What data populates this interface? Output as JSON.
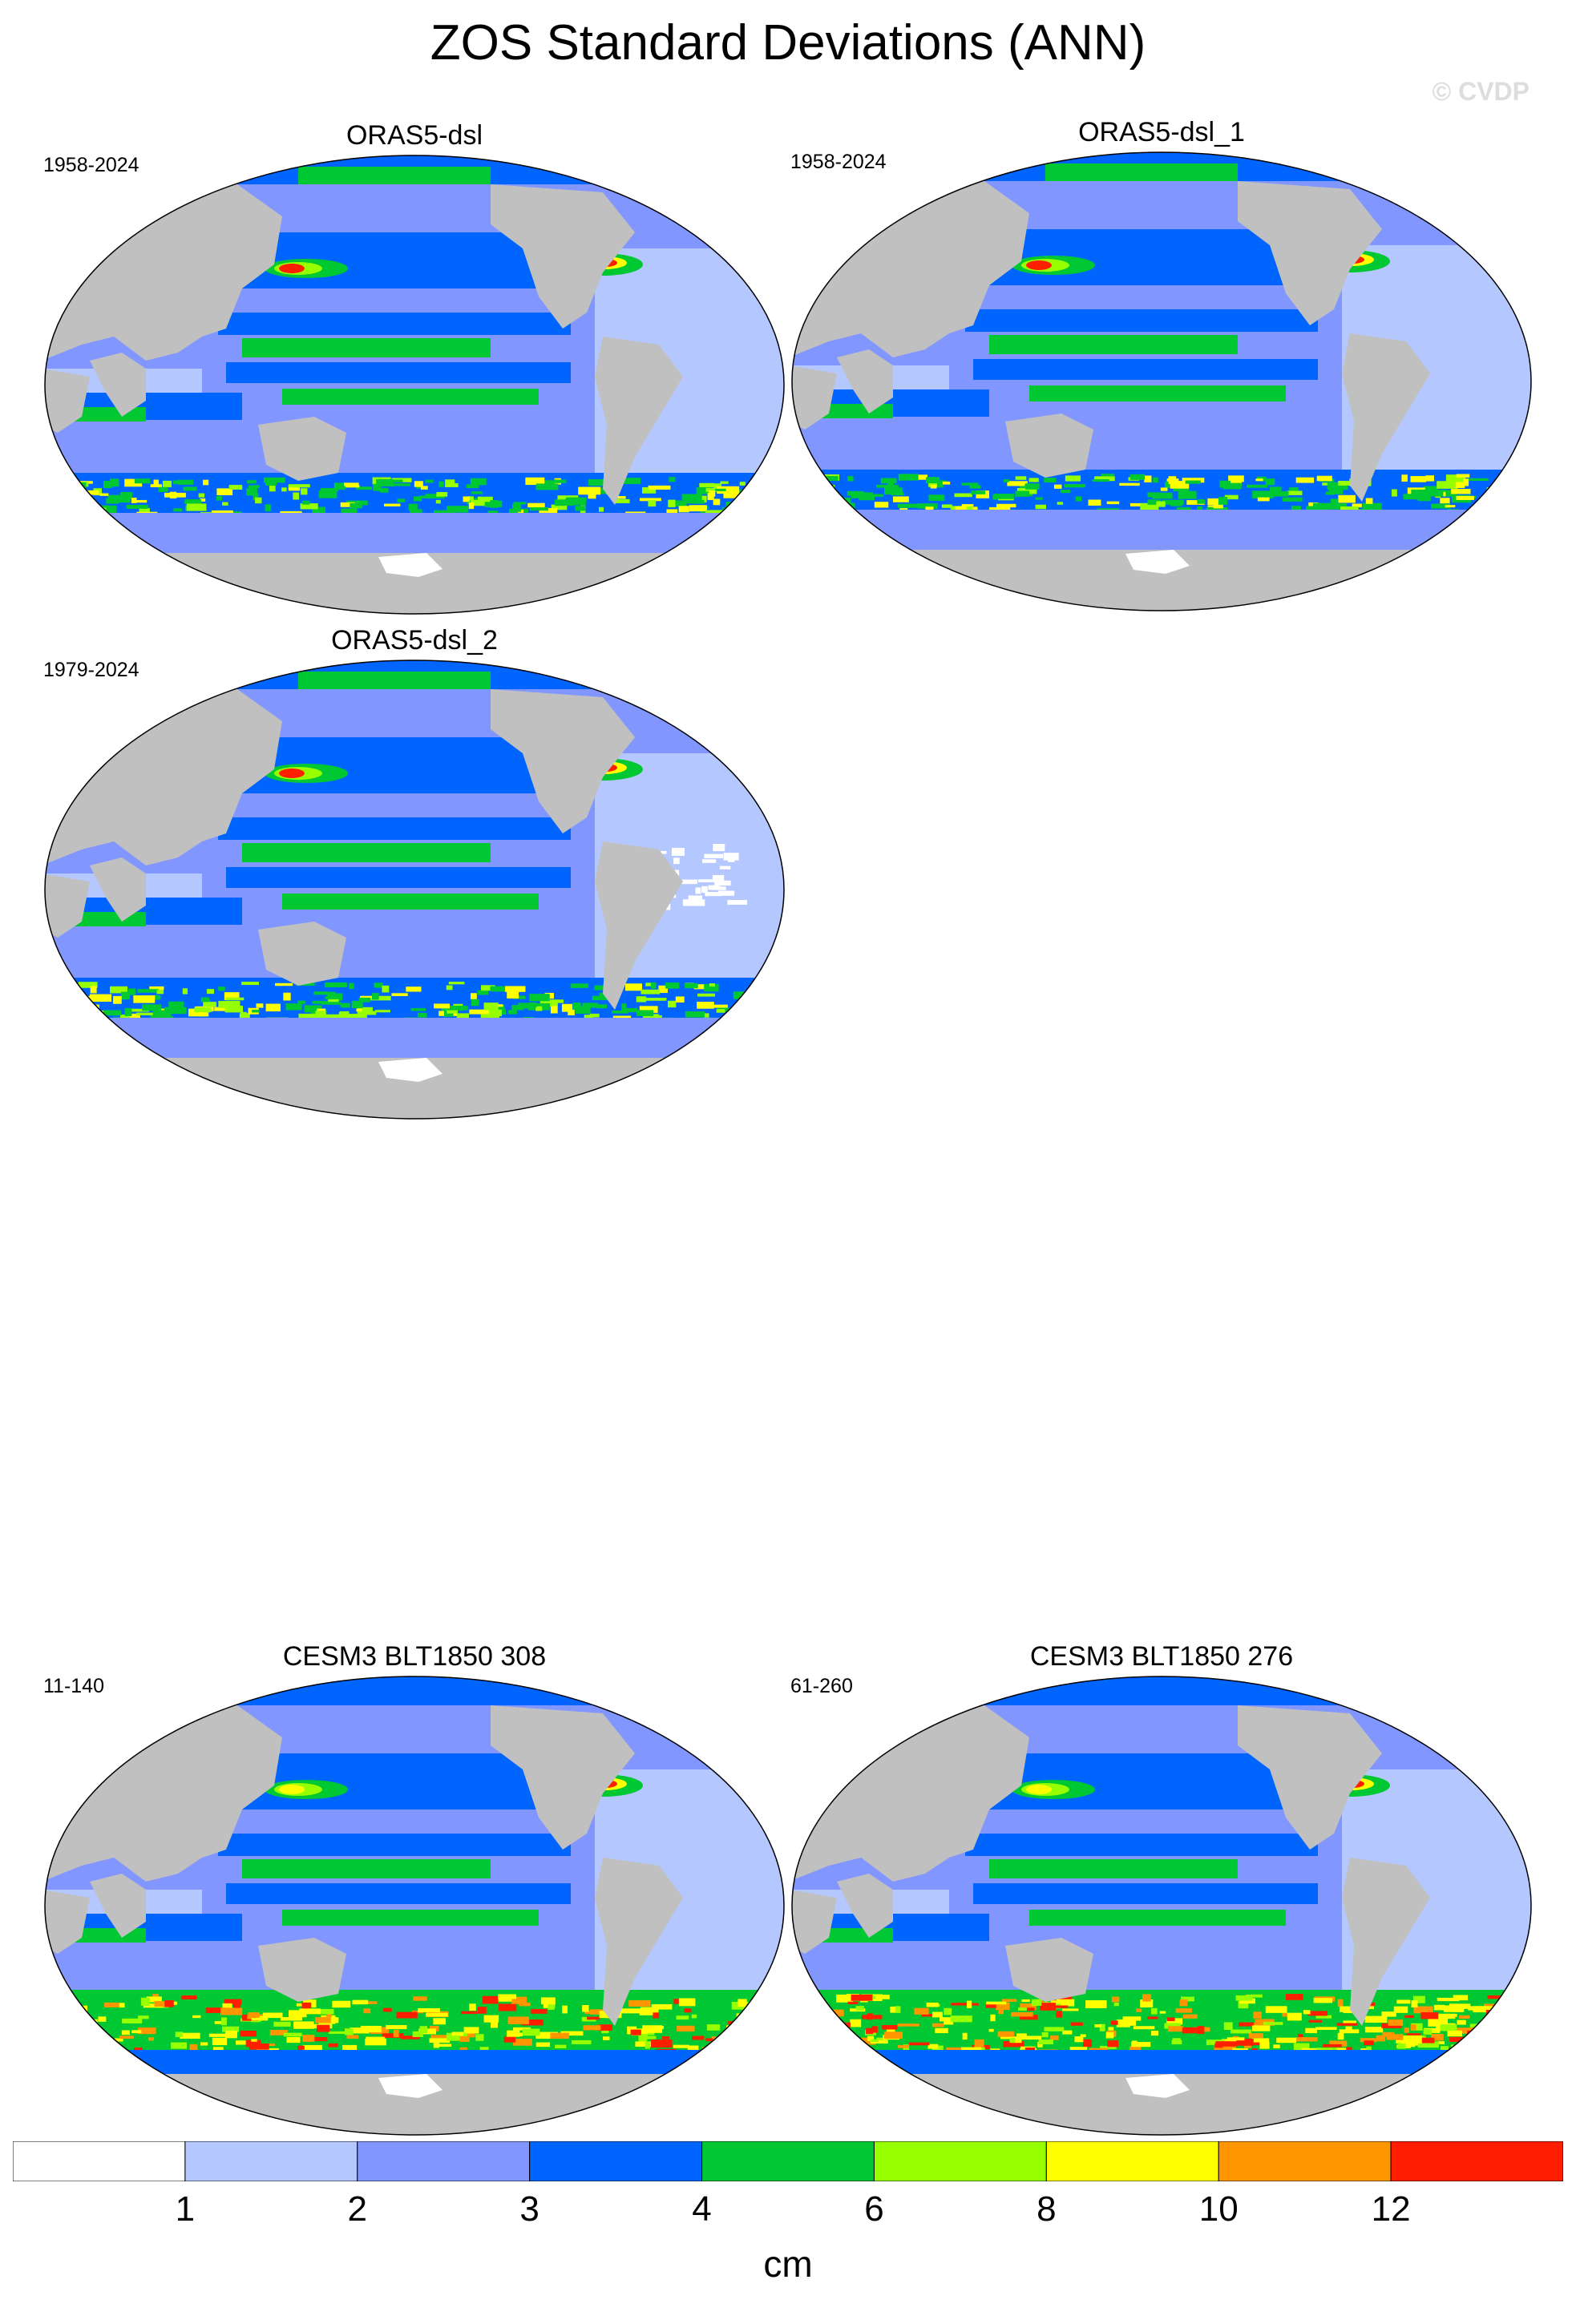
{
  "title": "ZOS Standard Deviations (ANN)",
  "watermark": "© CVDP",
  "panels": [
    {
      "name": "ORAS5-dsl",
      "years": "1958-2024",
      "variant": "reanalysis"
    },
    {
      "name": "ORAS5-dsl_1",
      "years": "1958-2024",
      "variant": "reanalysis"
    },
    {
      "name": "ORAS5-dsl_2",
      "years": "1979-2024",
      "variant": "reanalysis"
    },
    {
      "name": "CESM3 BLT1850 308",
      "years": "11-140",
      "variant": "model"
    },
    {
      "name": "CESM3 BLT1850 276",
      "years": "61-260",
      "variant": "model"
    }
  ],
  "colorbar": {
    "unit": "cm",
    "levels": [
      "1",
      "2",
      "3",
      "4",
      "6",
      "8",
      "10",
      "12"
    ],
    "colors": [
      "#ffffff",
      "#b4c8ff",
      "#8296ff",
      "#0064ff",
      "#00c832",
      "#96ff00",
      "#ffff00",
      "#ff9600",
      "#ff1e00"
    ]
  },
  "palette": {
    "land": "#c0c0c0",
    "c1": "#b4c8ff",
    "c2": "#8296ff",
    "c3": "#0064ff",
    "c4": "#00c832",
    "c6": "#96ff00",
    "c8": "#ffff00",
    "c10": "#ff9600",
    "c12": "#ff1e00"
  }
}
